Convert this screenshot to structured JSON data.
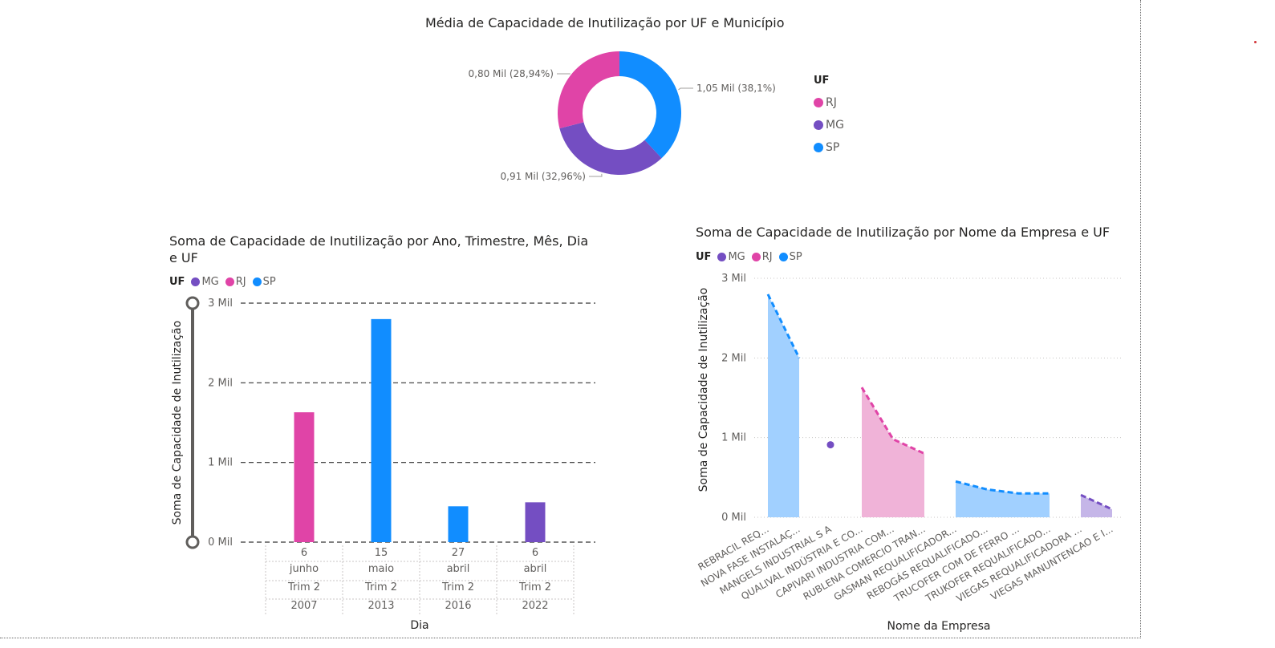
{
  "colors": {
    "SP": "#118dff",
    "MG": "#744ec2",
    "RJ": "#e044a7",
    "SP_area": "#a1d0ff",
    "MG_area": "#c5b6e8",
    "RJ_area": "#f0b3d8",
    "grid": "#444444",
    "text": "#605e5c"
  },
  "donut": {
    "title": "Média de Capacidade de Inutilização por UF e Município",
    "legend_title": "UF",
    "legend": [
      "RJ",
      "MG",
      "SP"
    ],
    "chart_data": {
      "type": "pie",
      "slices": [
        {
          "label": "1,05 Mil (38,1%)",
          "value": 1.05,
          "percent": 38.1,
          "color": "#118dff"
        },
        {
          "label": "0,91 Mil (32,96%)",
          "value": 0.91,
          "percent": 32.96,
          "color": "#744ec2"
        },
        {
          "label": "0,80 Mil (28,94%)",
          "value": 0.8,
          "percent": 28.94,
          "color": "#e044a7"
        }
      ]
    }
  },
  "bar": {
    "title_line1": "Soma de Capacidade de Inutilização por Ano, Trimestre, Mês, Dia",
    "title_line2": "e UF",
    "legend_title": "UF",
    "legend": [
      "MG",
      "RJ",
      "SP"
    ],
    "ylabel": "Soma de Capacidade de Inutilização",
    "xlabel": "Dia",
    "yticks": [
      "0 Mil",
      "1 Mil",
      "2 Mil",
      "3 Mil"
    ],
    "chart_data": {
      "type": "bar",
      "ylim": [
        0,
        3
      ],
      "categories": [
        {
          "day": "6",
          "month": "junho",
          "quarter": "Trim 2",
          "year": "2007"
        },
        {
          "day": "15",
          "month": "maio",
          "quarter": "Trim 2",
          "year": "2013"
        },
        {
          "day": "27",
          "month": "abril",
          "quarter": "Trim 2",
          "year": "2016"
        },
        {
          "day": "6",
          "month": "abril",
          "quarter": "Trim 2",
          "year": "2022"
        }
      ],
      "series": [
        {
          "name": "MG",
          "values": [
            0,
            0,
            0,
            0.5
          ]
        },
        {
          "name": "RJ",
          "values": [
            1.63,
            0,
            0,
            0
          ]
        },
        {
          "name": "SP",
          "values": [
            0,
            2.8,
            0.45,
            0
          ]
        }
      ]
    }
  },
  "area": {
    "title": "Soma de Capacidade de Inutilização por Nome da Empresa e UF",
    "legend_title": "UF",
    "legend": [
      "MG",
      "RJ",
      "SP"
    ],
    "ylabel": "Soma de Capacidade de Inutilização",
    "xlabel": "Nome da Empresa",
    "yticks": [
      "0 Mil",
      "1 Mil",
      "2 Mil",
      "3 Mil"
    ],
    "chart_data": {
      "type": "area",
      "ylim": [
        0,
        3
      ],
      "categories": [
        "REBRACIL REQ...",
        "NOVA FASE INSTALAÇ...",
        "MANGELS INDUSTRIAL S A",
        "QUALIVAL INDÚSTRIA E CO...",
        "CAPIVARI INDUSTRIA COM...",
        "RUBLENA COMERCIO TRAN...",
        "GASMAN REQUALIFICADOR...",
        "REBOGÁS REQUALIFICADO...",
        "TRUCOFER COM DE FERRO ...",
        "TRUKOFER REQUALIFICADO...",
        "VIEGAS REQUALIFICADORA ...",
        "VIEGAS MANUNTENCAO E I..."
      ],
      "series": [
        {
          "name": "SP",
          "values": [
            2.8,
            2.0,
            null,
            null,
            null,
            null,
            0.45,
            0.35,
            0.3,
            0.3,
            null,
            null
          ]
        },
        {
          "name": "MG",
          "values": [
            null,
            null,
            0.91,
            null,
            null,
            null,
            null,
            null,
            null,
            null,
            0.28,
            0.1
          ]
        },
        {
          "name": "RJ",
          "values": [
            null,
            null,
            null,
            1.63,
            0.98,
            0.8,
            null,
            null,
            null,
            null,
            null,
            null
          ]
        }
      ]
    }
  }
}
